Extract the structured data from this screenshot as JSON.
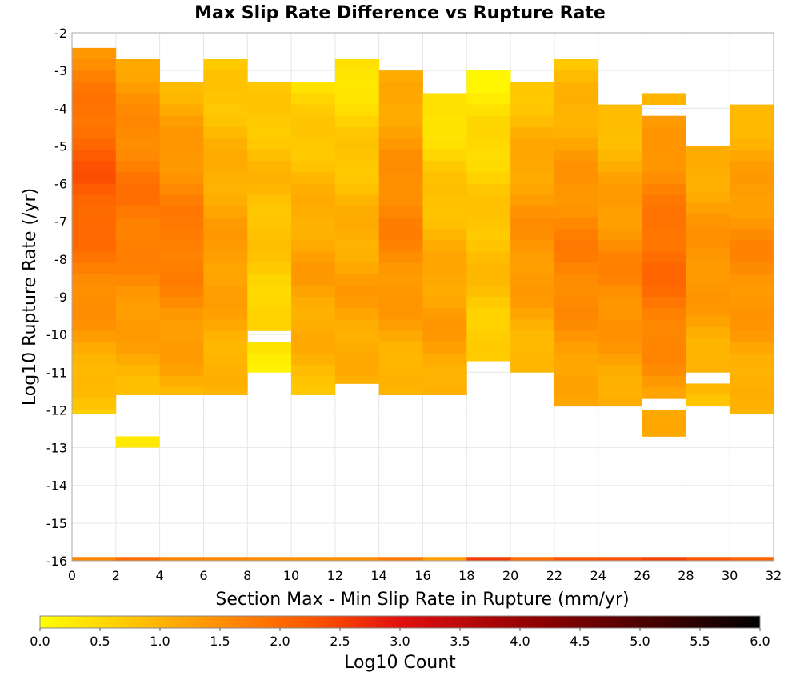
{
  "chart_data": {
    "type": "heatmap",
    "title": "Max Slip Rate Difference vs Rupture Rate",
    "xlabel": "Section Max - Min Slip Rate in Rupture (mm/yr)",
    "ylabel": "Log10 Rupture Rate (/yr)",
    "xlim": [
      0,
      32
    ],
    "ylim": [
      -16,
      -2
    ],
    "x_ticks": [
      0,
      2,
      4,
      6,
      8,
      10,
      12,
      14,
      16,
      18,
      20,
      22,
      24,
      26,
      28,
      30,
      32
    ],
    "y_ticks": [
      -2,
      -3,
      -4,
      -5,
      -6,
      -7,
      -8,
      -9,
      -10,
      -11,
      -12,
      -13,
      -14,
      -15,
      -16
    ],
    "x_bin_width": 2,
    "y_bin_height": 0.3,
    "grid": true,
    "colorbar": {
      "label": "Log10 Count",
      "range": [
        0.0,
        6.0
      ],
      "ticks": [
        "0.0",
        "0.5",
        "1.0",
        "1.5",
        "2.0",
        "2.5",
        "3.0",
        "3.5",
        "4.0",
        "4.5",
        "5.0",
        "5.5",
        "6.0"
      ],
      "colors": [
        "#ffff00",
        "#ffa500",
        "#ff5500",
        "#e01010",
        "#8b0000",
        "#000000"
      ]
    },
    "columns": [
      {
        "x": [
          0,
          2
        ],
        "y_top": -2.4,
        "y_bottom": -12.1,
        "peak_y": -5.9,
        "peak_value": 2.3,
        "min_value": 0.4,
        "total": 1.65
      },
      {
        "x": [
          2,
          4
        ],
        "y_top": -2.7,
        "y_bottom": -11.6,
        "peak_y": -6.5,
        "peak_value": 1.9,
        "min_value": 0.6,
        "total": 2.0
      },
      {
        "x": [
          4,
          6
        ],
        "y_top": -3.3,
        "y_bottom": -11.6,
        "peak_y": -7.5,
        "peak_value": 1.85,
        "min_value": 0.5,
        "total": 1.7
      },
      {
        "x": [
          6,
          8
        ],
        "y_top": -2.7,
        "y_bottom": -11.6,
        "peak_y": -8.0,
        "peak_value": 1.35,
        "min_value": 0.45,
        "total": 1.6
      },
      {
        "x": [
          8,
          10
        ],
        "y_top": -3.3,
        "y_bottom": -11.0,
        "peak_y": -6.0,
        "peak_value": 0.95,
        "min_value": 0.2,
        "total": 1.55
      },
      {
        "x": [
          10,
          12
        ],
        "y_top": -3.3,
        "y_bottom": -11.6,
        "peak_y": -8.4,
        "peak_value": 1.3,
        "min_value": 0.3,
        "total": 1.5
      },
      {
        "x": [
          12,
          14
        ],
        "y_top": -2.7,
        "y_bottom": -11.3,
        "peak_y": -9.0,
        "peak_value": 1.3,
        "min_value": 0.3,
        "total": 1.5
      },
      {
        "x": [
          14,
          16
        ],
        "y_top": -3.0,
        "y_bottom": -11.6,
        "peak_y": -7.0,
        "peak_value": 1.7,
        "min_value": 0.5,
        "total": 1.8
      },
      {
        "x": [
          16,
          18
        ],
        "y_top": -3.6,
        "y_bottom": -11.6,
        "peak_y": -9.6,
        "peak_value": 1.35,
        "min_value": 0.3,
        "total": 1.3
      },
      {
        "x": [
          18,
          20
        ],
        "y_top": -3.0,
        "y_bottom": -10.7,
        "peak_y": -8.0,
        "peak_value": 0.9,
        "min_value": 0.1,
        "total": 2.55
      },
      {
        "x": [
          20,
          22
        ],
        "y_top": -3.3,
        "y_bottom": -11.0,
        "peak_y": -7.5,
        "peak_value": 1.5,
        "min_value": 0.4,
        "total": 2.0
      },
      {
        "x": [
          22,
          24
        ],
        "y_top": -2.7,
        "y_bottom": -11.9,
        "peak_y": -8.0,
        "peak_value": 1.75,
        "min_value": 0.45,
        "total": 2.3
      },
      {
        "x": [
          24,
          26
        ],
        "y_top": -3.6,
        "y_bottom": -11.9,
        "peak_y": -8.5,
        "peak_value": 1.65,
        "min_value": 0.4,
        "total": 2.35
      },
      {
        "x": [
          26,
          28
        ],
        "y_top": -3.6,
        "y_bottom": -12.7,
        "peak_y": -8.1,
        "peak_value": 2.05,
        "min_value": 0.5,
        "total": 2.5
      },
      {
        "x": [
          28,
          30
        ],
        "y_top": -5.0,
        "y_bottom": -11.9,
        "peak_y": -8.0,
        "peak_value": 1.5,
        "min_value": 0.5,
        "total": 2.3
      },
      {
        "x": [
          30,
          32
        ],
        "y_top": -3.9,
        "y_bottom": -12.1,
        "peak_y": -8.0,
        "peak_value": 1.6,
        "min_value": 0.5,
        "total": 2.1
      }
    ],
    "gaps": [
      {
        "x": [
          0,
          2
        ],
        "y": [
          -12.1,
          -12.7
        ]
      },
      {
        "x": [
          8,
          10
        ],
        "y": [
          -9.9,
          -10.1
        ]
      },
      {
        "x": [
          24,
          26
        ],
        "y": [
          -3.6,
          -3.9
        ]
      },
      {
        "x": [
          26,
          28
        ],
        "y": [
          -3.9,
          -4.1
        ]
      },
      {
        "x": [
          26,
          28
        ],
        "y": [
          -11.6,
          -11.9
        ]
      },
      {
        "x": [
          28,
          30
        ],
        "y": [
          -11.0,
          -11.3
        ]
      }
    ],
    "extra_cells": [
      {
        "x": [
          2,
          4
        ],
        "y": [
          -12.7,
          -13.0
        ],
        "value": 0.3
      }
    ],
    "totals_y": -15.9
  }
}
